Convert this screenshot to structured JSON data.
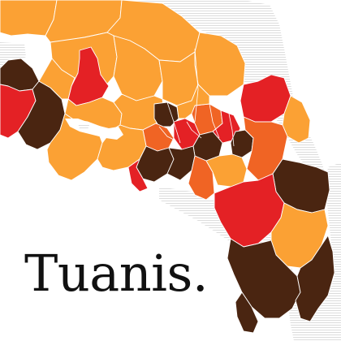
{
  "title": "Tuanis.",
  "colors": {
    "background": "#ffffff",
    "neighbor_hatch": "#d8d8d8",
    "ocean": "#ffffff",
    "border": "#ffffff",
    "text": "#111111"
  },
  "legend_palette": [
    "#fba134",
    "#f06424",
    "#e42125",
    "#4a2511"
  ]
}
